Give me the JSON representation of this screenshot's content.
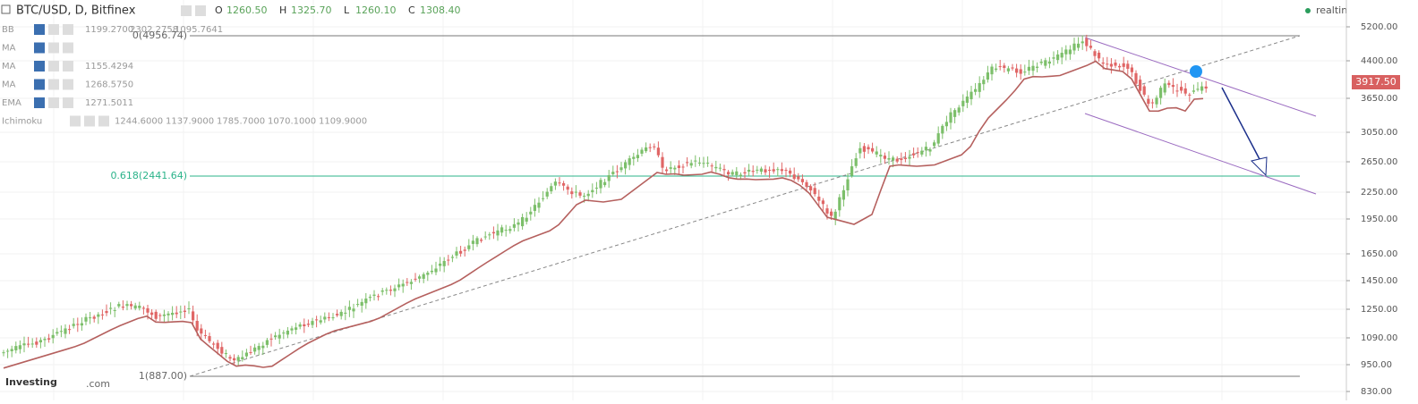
{
  "header": {
    "title": "BTC/USD, D, Bitfinex",
    "ohlc": [
      {
        "label": "O",
        "value": "1260.50"
      },
      {
        "label": "H",
        "value": "1325.70"
      },
      {
        "label": "L",
        "value": "1260.10"
      },
      {
        "label": "C",
        "value": "1308.40"
      }
    ],
    "realtime": "realtime"
  },
  "indicators": [
    {
      "name": "BB",
      "values": [
        "1199.2700",
        "2302.2758",
        "1095.7641"
      ]
    },
    {
      "name": "MA",
      "values": []
    },
    {
      "name": "MA",
      "values": [
        "1155.4294"
      ]
    },
    {
      "name": "MA",
      "values": [
        "1268.5750"
      ]
    },
    {
      "name": "EMA",
      "values": [
        "1271.5011"
      ]
    },
    {
      "name": "Ichimoku",
      "values": [
        "1244.6000",
        "1137.9000",
        "1785.7000",
        "1070.1000",
        "1109.9000"
      ]
    }
  ],
  "fib_labels": [
    "0(4956.74)",
    "0.618(2441.64)",
    "1(887.00)"
  ],
  "price_axis": [
    "5200.00",
    "4400.00",
    "3650.00",
    "3050.00",
    "2650.00",
    "2250.00",
    "1950.00",
    "1650.00",
    "1450.00",
    "1250.00",
    "1090.00",
    "950.00",
    "830.00"
  ],
  "price_tag": "3917.50",
  "logo": {
    "brand": "Investing",
    "suffix": ".com"
  }
}
